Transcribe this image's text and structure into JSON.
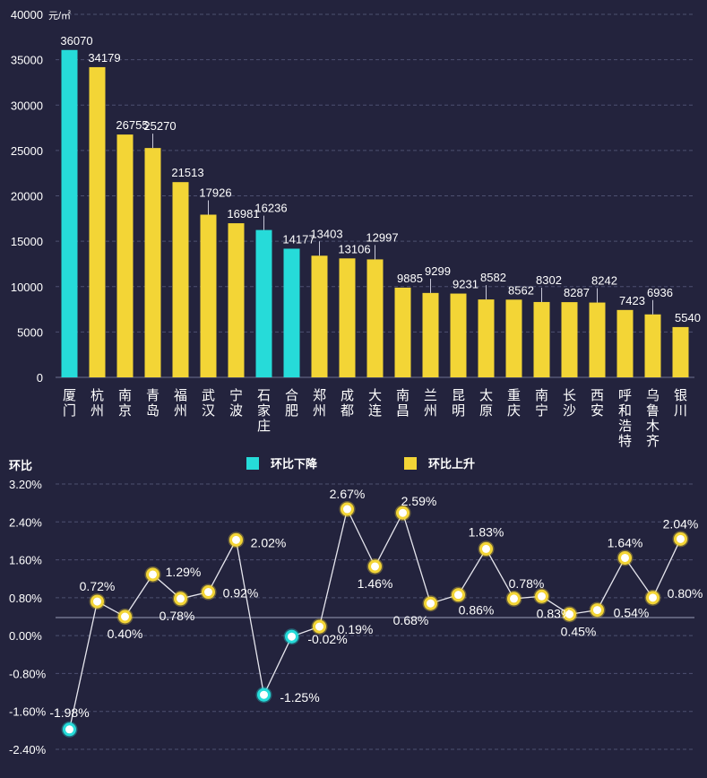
{
  "chart_data": [
    {
      "type": "bar",
      "title": "",
      "unit": "元/㎡",
      "ylim": [
        0,
        40000
      ],
      "yticks": [
        0,
        5000,
        10000,
        15000,
        20000,
        25000,
        30000,
        35000,
        40000
      ],
      "categories": [
        "厦门",
        "杭州",
        "南京",
        "青岛",
        "福州",
        "武汉",
        "宁波",
        "石家庄",
        "合肥",
        "郑州",
        "成都",
        "大连",
        "南昌",
        "兰州",
        "昆明",
        "太原",
        "重庆",
        "南宁",
        "长沙",
        "西安",
        "呼和浩特",
        "乌鲁木齐",
        "银川"
      ],
      "values": [
        36070,
        34179,
        26755,
        25270,
        21513,
        17926,
        16981,
        16236,
        14177,
        13403,
        13106,
        12997,
        9885,
        9299,
        9231,
        8582,
        8562,
        8302,
        8287,
        8242,
        7423,
        6936,
        5540
      ],
      "trend": [
        "down",
        "up",
        "up",
        "up",
        "up",
        "up",
        "up",
        "down",
        "down",
        "up",
        "up",
        "up",
        "up",
        "up",
        "up",
        "up",
        "up",
        "up",
        "up",
        "up",
        "up",
        "up",
        "up"
      ],
      "colors": {
        "down": "#26dbd9",
        "up": "#f3d536"
      }
    },
    {
      "type": "line",
      "ylabel": "环比",
      "ylim": [
        -2.4,
        3.2
      ],
      "yticks": [
        "3.20%",
        "2.40%",
        "1.60%",
        "0.80%",
        "0.00%",
        "-0.80%",
        "-1.60%",
        "-2.40%"
      ],
      "ytick_values": [
        3.2,
        2.4,
        1.6,
        0.8,
        0.0,
        -0.8,
        -1.6,
        -2.4
      ],
      "values": [
        -1.98,
        0.72,
        0.4,
        1.29,
        0.78,
        0.92,
        2.02,
        -1.25,
        -0.02,
        0.19,
        2.67,
        1.46,
        2.59,
        0.68,
        0.86,
        1.83,
        0.78,
        0.83,
        0.45,
        0.54,
        1.64,
        0.8,
        2.04
      ],
      "labels": [
        "-1.98%",
        "0.72%",
        "0.40%",
        "1.29%",
        "0.78%",
        "0.92%",
        "2.02%",
        "-1.25%",
        "-0.02%",
        "0.19%",
        "2.67%",
        "1.46%",
        "2.59%",
        "0.68%",
        "0.86%",
        "1.83%",
        "0.78%",
        "0.83%",
        "0.45%",
        "0.54%",
        "1.64%",
        "0.80%",
        "2.04%"
      ],
      "legend": [
        {
          "label": "环比下降",
          "color": "#26dbd9"
        },
        {
          "label": "环比上升",
          "color": "#f3d536"
        }
      ]
    }
  ]
}
